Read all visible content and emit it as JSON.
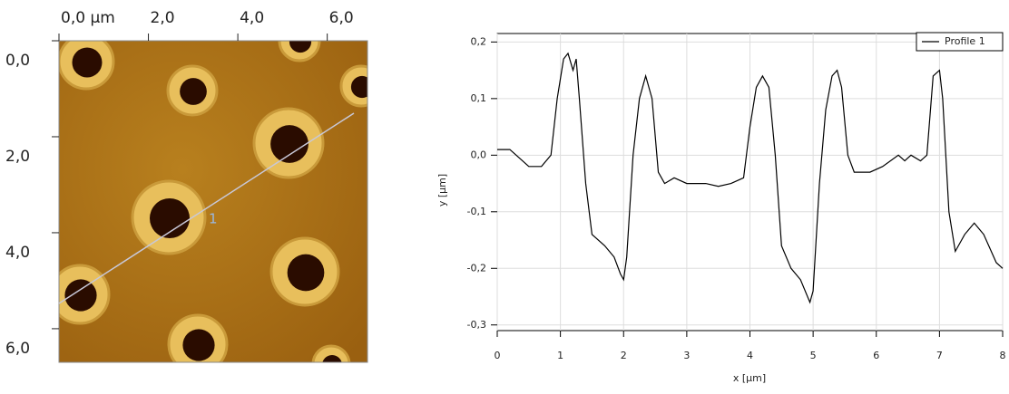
{
  "chart_data": [
    {
      "type": "image",
      "xlim": [
        0,
        6.9
      ],
      "ylim": [
        0,
        6.7
      ],
      "xticks": [
        {
          "value": 0,
          "label": "0,0 µm"
        },
        {
          "value": 2,
          "label": "2,0"
        },
        {
          "value": 4,
          "label": "4,0"
        },
        {
          "value": 6,
          "label": "6,0"
        }
      ],
      "yticks": [
        {
          "value": 0,
          "label": "0,0"
        },
        {
          "value": 2,
          "label": "2,0"
        },
        {
          "value": 4,
          "label": "4,0"
        },
        {
          "value": 6,
          "label": "6,0"
        }
      ],
      "annotation": "1"
    },
    {
      "type": "line",
      "xlabel": "x [µm]",
      "ylabel": "y [µm]",
      "xlim": [
        0,
        8
      ],
      "ylim": [
        -0.31,
        0.215
      ],
      "xticks": [
        0,
        1,
        2,
        3,
        4,
        5,
        6,
        7,
        8
      ],
      "yticks": [
        {
          "value": 0.2,
          "label": "0,2"
        },
        {
          "value": 0.1,
          "label": "0,1"
        },
        {
          "value": 0,
          "label": "0,0"
        },
        {
          "value": -0.1,
          "label": "-0,1"
        },
        {
          "value": -0.2,
          "label": "-0,2"
        },
        {
          "value": -0.3,
          "label": "-0,3"
        }
      ],
      "grid": true,
      "legend": "upper right",
      "x": [
        0,
        0.2,
        0.3,
        0.5,
        0.7,
        0.85,
        0.95,
        1.05,
        1.12,
        1.2,
        1.25,
        1.3,
        1.4,
        1.5,
        1.7,
        1.85,
        1.95,
        2.0,
        2.05,
        2.15,
        2.25,
        2.35,
        2.45,
        2.55,
        2.65,
        2.8,
        3.0,
        3.3,
        3.5,
        3.7,
        3.9,
        4.0,
        4.1,
        4.2,
        4.3,
        4.4,
        4.5,
        4.65,
        4.8,
        4.95,
        5.0,
        5.1,
        5.2,
        5.3,
        5.38,
        5.45,
        5.55,
        5.65,
        5.9,
        6.1,
        6.35,
        6.45,
        6.55,
        6.7,
        6.8,
        6.9,
        7.0,
        7.05,
        7.15,
        7.25,
        7.4,
        7.55,
        7.7,
        7.9,
        8.0
      ],
      "series": [
        {
          "name": "Profile 1",
          "color": "#000000",
          "values": [
            0.01,
            0.01,
            0.0,
            -0.02,
            -0.02,
            0.0,
            0.1,
            0.17,
            0.18,
            0.15,
            0.17,
            0.1,
            -0.05,
            -0.14,
            -0.16,
            -0.18,
            -0.21,
            -0.22,
            -0.18,
            0.0,
            0.1,
            0.14,
            0.1,
            -0.03,
            -0.05,
            -0.04,
            -0.05,
            -0.05,
            -0.055,
            -0.05,
            -0.04,
            0.05,
            0.12,
            0.14,
            0.12,
            0.0,
            -0.16,
            -0.2,
            -0.22,
            -0.26,
            -0.24,
            -0.05,
            0.08,
            0.14,
            0.15,
            0.12,
            0.0,
            -0.03,
            -0.03,
            -0.02,
            0.0,
            -0.01,
            0.0,
            -0.01,
            0.0,
            0.14,
            0.15,
            0.1,
            -0.1,
            -0.17,
            -0.14,
            -0.12,
            -0.14,
            -0.19,
            -0.2
          ]
        }
      ]
    }
  ]
}
